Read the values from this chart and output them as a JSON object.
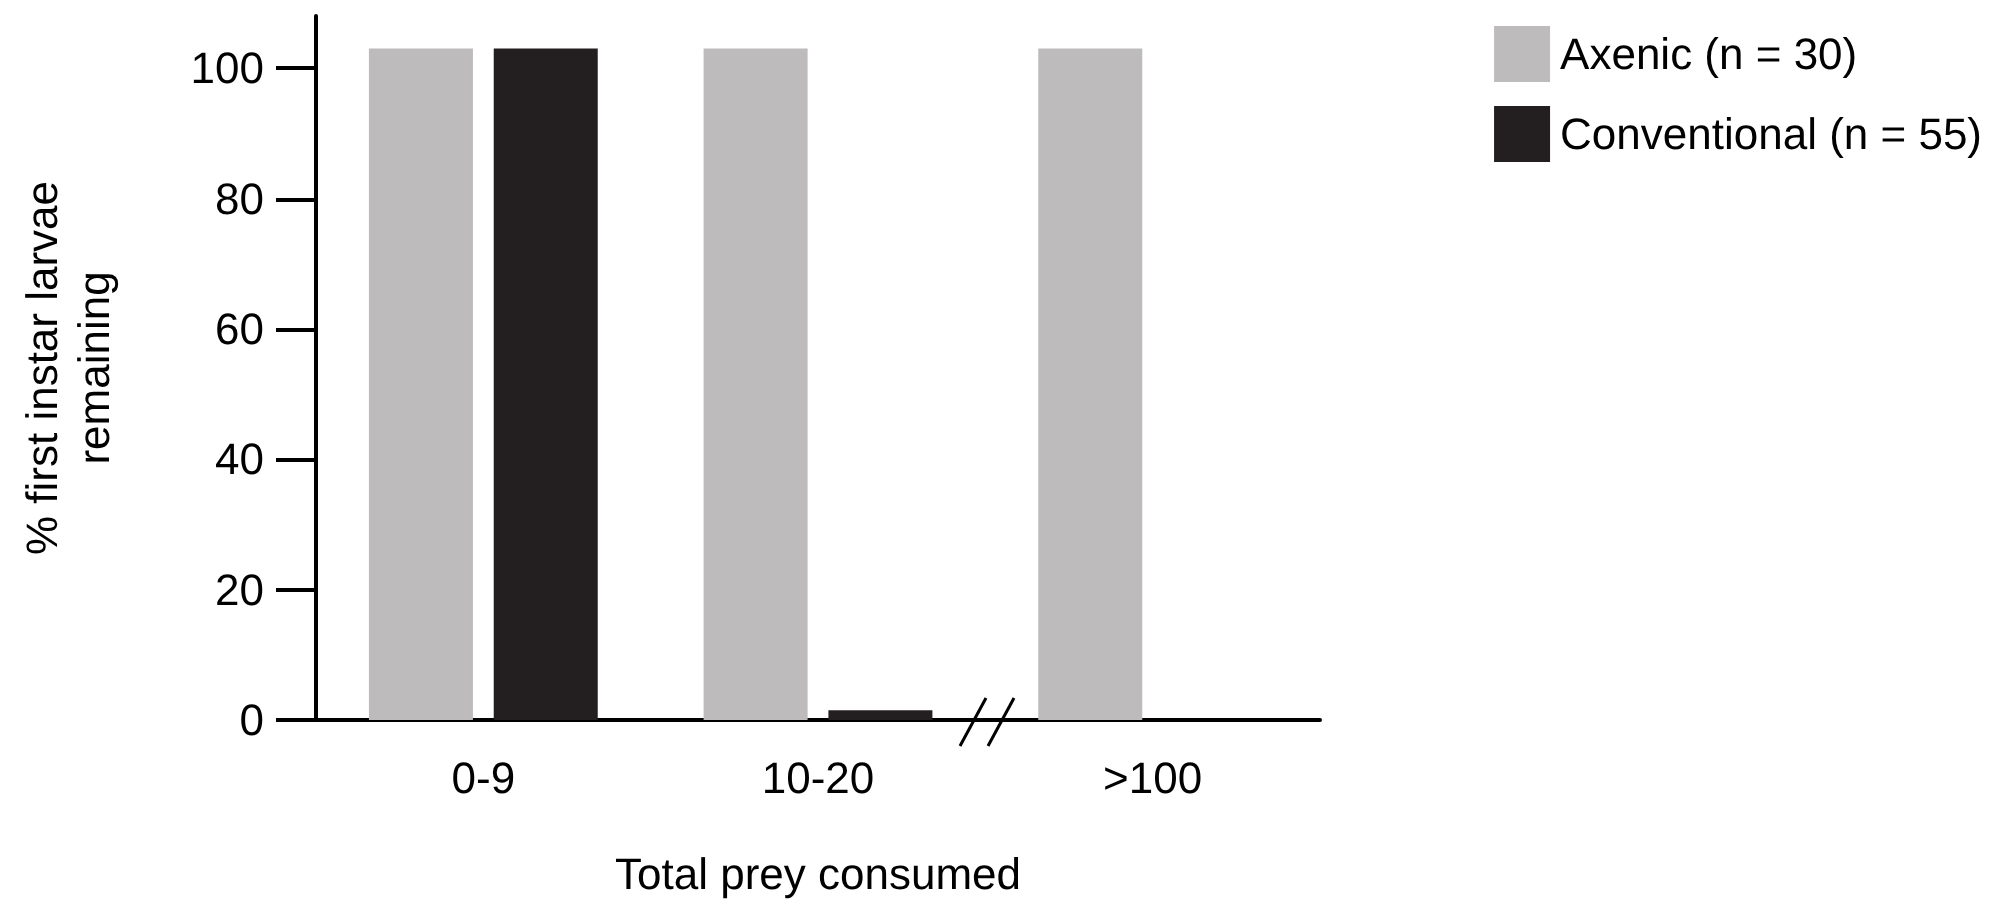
{
  "chart_data": {
    "type": "bar",
    "xlabel": "Total prey consumed",
    "ylabel": "% first instar larvae remaining",
    "categories": [
      "0-9",
      "10-20",
      ">100"
    ],
    "series": [
      {
        "name": "Axenic (n = 30)",
        "color": "#bdbbbc",
        "values": [
          103,
          103,
          103
        ]
      },
      {
        "name": "Conventional (n = 55)",
        "color": "#231f20",
        "values": [
          103,
          1.5,
          0
        ]
      }
    ],
    "ylim": [
      0,
      108
    ],
    "yticks": [
      0,
      20,
      40,
      60,
      80,
      100
    ],
    "grid": false,
    "legend": "top right"
  }
}
